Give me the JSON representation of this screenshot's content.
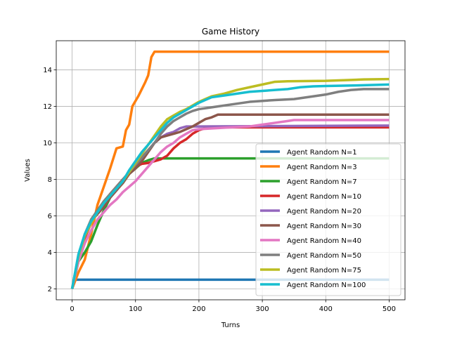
{
  "chart_data": {
    "type": "line",
    "title": "Game History",
    "xlabel": "Turns",
    "ylabel": "Values",
    "xlim": [
      -25,
      525
    ],
    "ylim": [
      1.4,
      15.6
    ],
    "xticks": [
      0,
      100,
      200,
      300,
      400,
      500
    ],
    "yticks": [
      2,
      4,
      6,
      8,
      10,
      12,
      14
    ],
    "grid": true,
    "legend_position": "lower-right",
    "series": [
      {
        "name": "Agent Random N=1",
        "color": "#1f77b4",
        "points": [
          [
            0,
            2.0
          ],
          [
            5,
            2.5
          ],
          [
            500,
            2.5
          ]
        ]
      },
      {
        "name": "Agent Random N=3",
        "color": "#ff7f0e",
        "points": [
          [
            0,
            2.0
          ],
          [
            10,
            2.9
          ],
          [
            20,
            3.6
          ],
          [
            30,
            5.0
          ],
          [
            40,
            6.6
          ],
          [
            50,
            7.6
          ],
          [
            60,
            8.6
          ],
          [
            70,
            9.7
          ],
          [
            80,
            9.8
          ],
          [
            85,
            10.7
          ],
          [
            90,
            11.0
          ],
          [
            95,
            12.0
          ],
          [
            100,
            12.3
          ],
          [
            105,
            12.6
          ],
          [
            115,
            13.3
          ],
          [
            120,
            13.7
          ],
          [
            125,
            14.7
          ],
          [
            130,
            15.0
          ],
          [
            500,
            15.0
          ]
        ]
      },
      {
        "name": "Agent Random N=7",
        "color": "#2ca02c",
        "points": [
          [
            0,
            2.0
          ],
          [
            10,
            3.5
          ],
          [
            20,
            4.0
          ],
          [
            30,
            4.6
          ],
          [
            40,
            5.5
          ],
          [
            50,
            6.3
          ],
          [
            60,
            7.0
          ],
          [
            70,
            7.5
          ],
          [
            80,
            7.8
          ],
          [
            90,
            8.3
          ],
          [
            100,
            8.6
          ],
          [
            110,
            8.9
          ],
          [
            120,
            9.05
          ],
          [
            130,
            9.15
          ],
          [
            500,
            9.15
          ]
        ]
      },
      {
        "name": "Agent Random N=10",
        "color": "#d62728",
        "points": [
          [
            0,
            2.0
          ],
          [
            10,
            3.6
          ],
          [
            20,
            4.8
          ],
          [
            30,
            5.6
          ],
          [
            40,
            6.2
          ],
          [
            50,
            6.7
          ],
          [
            60,
            7.2
          ],
          [
            70,
            7.6
          ],
          [
            80,
            8.0
          ],
          [
            90,
            8.3
          ],
          [
            100,
            8.7
          ],
          [
            110,
            8.85
          ],
          [
            120,
            8.9
          ],
          [
            130,
            9.0
          ],
          [
            140,
            9.1
          ],
          [
            150,
            9.3
          ],
          [
            160,
            9.7
          ],
          [
            170,
            10.0
          ],
          [
            180,
            10.2
          ],
          [
            190,
            10.5
          ],
          [
            200,
            10.7
          ],
          [
            210,
            10.8
          ],
          [
            230,
            10.85
          ],
          [
            500,
            10.85
          ]
        ]
      },
      {
        "name": "Agent Random N=20",
        "color": "#9467bd",
        "points": [
          [
            0,
            2.0
          ],
          [
            10,
            3.8
          ],
          [
            20,
            4.9
          ],
          [
            30,
            5.6
          ],
          [
            40,
            6.2
          ],
          [
            50,
            6.6
          ],
          [
            60,
            7.0
          ],
          [
            70,
            7.4
          ],
          [
            80,
            7.9
          ],
          [
            90,
            8.4
          ],
          [
            100,
            8.8
          ],
          [
            110,
            9.2
          ],
          [
            120,
            9.6
          ],
          [
            130,
            10.0
          ],
          [
            140,
            10.3
          ],
          [
            150,
            10.5
          ],
          [
            160,
            10.6
          ],
          [
            170,
            10.8
          ],
          [
            180,
            10.9
          ],
          [
            200,
            10.9
          ],
          [
            500,
            10.95
          ]
        ]
      },
      {
        "name": "Agent Random N=30",
        "color": "#8c564b",
        "points": [
          [
            0,
            2.0
          ],
          [
            10,
            3.8
          ],
          [
            20,
            4.9
          ],
          [
            30,
            5.7
          ],
          [
            40,
            6.1
          ],
          [
            50,
            6.5
          ],
          [
            60,
            7.0
          ],
          [
            70,
            7.4
          ],
          [
            80,
            7.8
          ],
          [
            90,
            8.3
          ],
          [
            100,
            8.6
          ],
          [
            110,
            9.0
          ],
          [
            120,
            9.5
          ],
          [
            130,
            10.0
          ],
          [
            140,
            10.3
          ],
          [
            150,
            10.4
          ],
          [
            160,
            10.5
          ],
          [
            170,
            10.6
          ],
          [
            180,
            10.75
          ],
          [
            190,
            10.9
          ],
          [
            200,
            11.1
          ],
          [
            210,
            11.3
          ],
          [
            220,
            11.4
          ],
          [
            230,
            11.55
          ],
          [
            500,
            11.55
          ]
        ]
      },
      {
        "name": "Agent Random N=40",
        "color": "#e377c2",
        "points": [
          [
            0,
            2.0
          ],
          [
            10,
            3.5
          ],
          [
            20,
            4.5
          ],
          [
            30,
            5.2
          ],
          [
            40,
            5.8
          ],
          [
            50,
            6.2
          ],
          [
            60,
            6.6
          ],
          [
            70,
            6.9
          ],
          [
            80,
            7.3
          ],
          [
            90,
            7.6
          ],
          [
            100,
            7.9
          ],
          [
            110,
            8.3
          ],
          [
            120,
            8.7
          ],
          [
            130,
            9.1
          ],
          [
            140,
            9.5
          ],
          [
            150,
            9.8
          ],
          [
            160,
            10.0
          ],
          [
            170,
            10.3
          ],
          [
            180,
            10.5
          ],
          [
            190,
            10.7
          ],
          [
            200,
            10.75
          ],
          [
            250,
            10.85
          ],
          [
            280,
            10.9
          ],
          [
            300,
            11.0
          ],
          [
            320,
            11.1
          ],
          [
            340,
            11.2
          ],
          [
            350,
            11.25
          ],
          [
            500,
            11.25
          ]
        ]
      },
      {
        "name": "Agent Random N=50",
        "color": "#7f7f7f",
        "points": [
          [
            0,
            2.0
          ],
          [
            10,
            3.8
          ],
          [
            20,
            5.0
          ],
          [
            30,
            5.8
          ],
          [
            40,
            6.3
          ],
          [
            50,
            6.8
          ],
          [
            60,
            7.2
          ],
          [
            70,
            7.6
          ],
          [
            80,
            8.0
          ],
          [
            90,
            8.4
          ],
          [
            100,
            8.8
          ],
          [
            110,
            9.2
          ],
          [
            120,
            9.6
          ],
          [
            130,
            10.0
          ],
          [
            140,
            10.5
          ],
          [
            150,
            10.9
          ],
          [
            160,
            11.2
          ],
          [
            170,
            11.4
          ],
          [
            180,
            11.6
          ],
          [
            190,
            11.75
          ],
          [
            200,
            11.85
          ],
          [
            220,
            11.95
          ],
          [
            250,
            12.1
          ],
          [
            280,
            12.25
          ],
          [
            300,
            12.3
          ],
          [
            320,
            12.35
          ],
          [
            350,
            12.4
          ],
          [
            380,
            12.55
          ],
          [
            400,
            12.65
          ],
          [
            420,
            12.8
          ],
          [
            440,
            12.9
          ],
          [
            460,
            12.95
          ],
          [
            500,
            12.95
          ]
        ]
      },
      {
        "name": "Agent Random N=75",
        "color": "#bcbd22",
        "points": [
          [
            0,
            2.0
          ],
          [
            10,
            3.8
          ],
          [
            20,
            4.9
          ],
          [
            30,
            5.6
          ],
          [
            40,
            6.2
          ],
          [
            50,
            6.7
          ],
          [
            60,
            7.1
          ],
          [
            70,
            7.5
          ],
          [
            80,
            7.9
          ],
          [
            90,
            8.4
          ],
          [
            100,
            8.9
          ],
          [
            110,
            9.4
          ],
          [
            120,
            9.9
          ],
          [
            130,
            10.4
          ],
          [
            140,
            10.9
          ],
          [
            150,
            11.3
          ],
          [
            160,
            11.5
          ],
          [
            170,
            11.7
          ],
          [
            180,
            11.85
          ],
          [
            190,
            12.05
          ],
          [
            200,
            12.25
          ],
          [
            210,
            12.4
          ],
          [
            220,
            12.55
          ],
          [
            240,
            12.7
          ],
          [
            260,
            12.9
          ],
          [
            280,
            13.05
          ],
          [
            300,
            13.2
          ],
          [
            320,
            13.35
          ],
          [
            340,
            13.38
          ],
          [
            400,
            13.4
          ],
          [
            440,
            13.45
          ],
          [
            460,
            13.48
          ],
          [
            500,
            13.5
          ]
        ]
      },
      {
        "name": "Agent Random N=100",
        "color": "#17becf",
        "points": [
          [
            0,
            2.0
          ],
          [
            10,
            3.9
          ],
          [
            20,
            5.0
          ],
          [
            30,
            5.7
          ],
          [
            40,
            6.2
          ],
          [
            50,
            6.7
          ],
          [
            60,
            7.1
          ],
          [
            70,
            7.5
          ],
          [
            80,
            7.9
          ],
          [
            90,
            8.5
          ],
          [
            100,
            9.0
          ],
          [
            110,
            9.5
          ],
          [
            120,
            9.9
          ],
          [
            130,
            10.3
          ],
          [
            140,
            10.7
          ],
          [
            150,
            11.1
          ],
          [
            160,
            11.4
          ],
          [
            170,
            11.6
          ],
          [
            180,
            11.8
          ],
          [
            190,
            12.0
          ],
          [
            200,
            12.2
          ],
          [
            210,
            12.35
          ],
          [
            220,
            12.5
          ],
          [
            240,
            12.6
          ],
          [
            260,
            12.7
          ],
          [
            280,
            12.8
          ],
          [
            300,
            12.85
          ],
          [
            320,
            12.9
          ],
          [
            340,
            12.95
          ],
          [
            360,
            13.05
          ],
          [
            380,
            13.1
          ],
          [
            400,
            13.12
          ],
          [
            450,
            13.15
          ],
          [
            500,
            13.2
          ]
        ]
      }
    ]
  }
}
